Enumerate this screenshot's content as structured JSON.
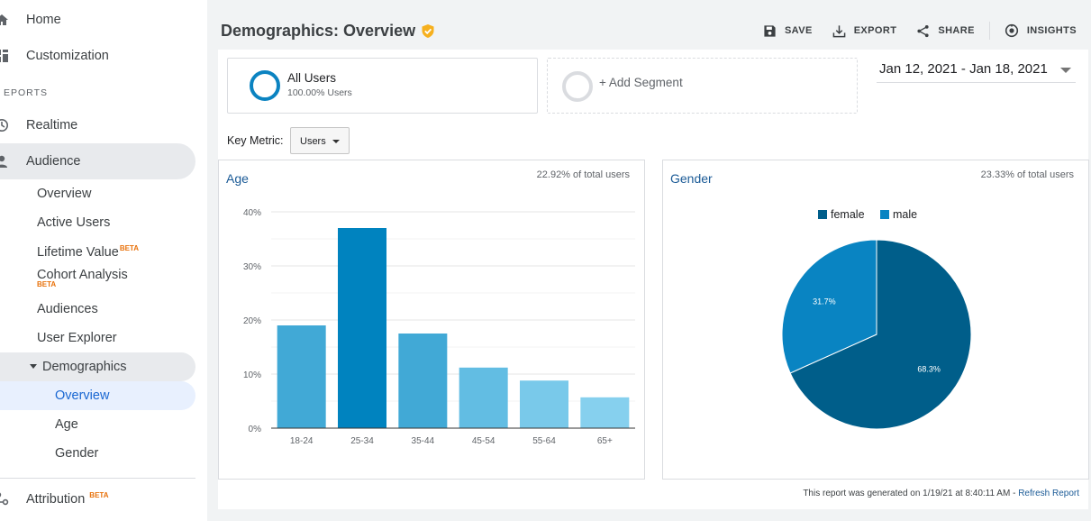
{
  "sidebar": {
    "home": "Home",
    "customization": "Customization",
    "section_reports": "EPORTS",
    "realtime": "Realtime",
    "audience": "Audience",
    "audience_items": {
      "overview": "Overview",
      "active_users": "Active Users",
      "lifetime_value": "Lifetime Value",
      "cohort_analysis": "Cohort Analysis",
      "audiences": "Audiences",
      "user_explorer": "User Explorer",
      "demographics": "Demographics",
      "demo_overview": "Overview",
      "demo_age": "Age",
      "demo_gender": "Gender"
    },
    "beta": "BETA",
    "attribution": "Attribution"
  },
  "header": {
    "title": "Demographics: Overview",
    "save": "SAVE",
    "export": "EXPORT",
    "share": "SHARE",
    "insights": "INSIGHTS"
  },
  "segments": {
    "all_users": "All Users",
    "all_users_pct": "100.00% Users",
    "add_segment": "+ Add Segment"
  },
  "date_range": "Jan 12, 2021 - Jan 18, 2021",
  "key_metric": {
    "label": "Key Metric:",
    "value": "Users"
  },
  "age_card": {
    "title": "Age",
    "pct_total": "22.92% of total users"
  },
  "gender_card": {
    "title": "Gender",
    "pct_total": "23.33% of total users"
  },
  "footer": {
    "generated": "This report was generated on 1/19/21 at 8:40:11 AM - ",
    "refresh": "Refresh Report"
  },
  "colors": {
    "accent": "#1a5a96",
    "female": "#005e8a",
    "male": "#0984c2"
  },
  "chart_data": [
    {
      "type": "bar",
      "title": "Age",
      "categories": [
        "18-24",
        "25-34",
        "35-44",
        "45-54",
        "55-64",
        "65+"
      ],
      "values": [
        19.0,
        37.0,
        17.5,
        11.2,
        8.8,
        5.7
      ],
      "bar_colors": [
        "#41a9d6",
        "#0083bf",
        "#41a9d6",
        "#62bde3",
        "#79c9ea",
        "#86d0ee"
      ],
      "yticks": [
        "0%",
        "10%",
        "20%",
        "30%",
        "40%"
      ],
      "ylim": [
        0,
        40
      ],
      "grid": true
    },
    {
      "type": "pie",
      "title": "Gender",
      "labels": [
        "female",
        "male"
      ],
      "values": [
        68.3,
        31.7
      ],
      "value_labels": [
        "68.3%",
        "31.7%"
      ],
      "colors": [
        "#005e8a",
        "#0984c2"
      ],
      "legend": "top"
    }
  ]
}
